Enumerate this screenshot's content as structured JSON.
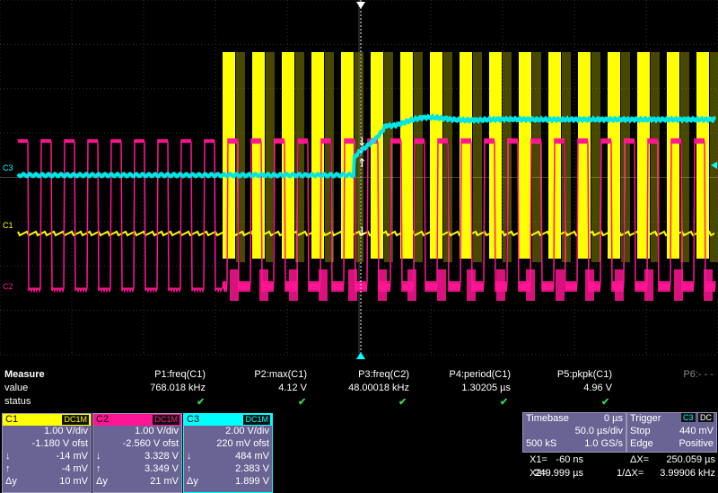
{
  "channels_marker": {
    "c3": "C3",
    "c1": "C1",
    "c2": "C2"
  },
  "measure": {
    "title": "Measure",
    "row_value": "value",
    "row_status": "status",
    "params": [
      {
        "name": "P1:freq(C1)",
        "value": "768.018 kHz",
        "status": "✔"
      },
      {
        "name": "P2:max(C1)",
        "value": "4.12 V",
        "status": "✔"
      },
      {
        "name": "P3:freq(C2)",
        "value": "48.00018 kHz",
        "status": "✔"
      },
      {
        "name": "P4:period(C1)",
        "value": "1.30205 µs",
        "status": "✔"
      },
      {
        "name": "P5:pkpk(C1)",
        "value": "4.96 V",
        "status": "✔"
      },
      {
        "name": "P6:- - -",
        "value": "",
        "status": ""
      }
    ]
  },
  "channel_boxes": [
    {
      "name": "C1",
      "coupling": "DC1M",
      "color": "#ffff00",
      "text_color": "#000000",
      "vdiv": "1.00 V/div",
      "offset": "-1.180 V ofst",
      "down": "-14 mV",
      "up": "-4 mV",
      "delta": "10 mV"
    },
    {
      "name": "C2",
      "coupling": "DC1M",
      "color": "#ff1493",
      "text_color": "#000000",
      "vdiv": "1.00 V/div",
      "offset": "-2.560 V ofst",
      "down": "3.328 V",
      "up": "3.349 V",
      "delta": "21 mV"
    },
    {
      "name": "C3",
      "coupling": "DC1M",
      "color": "#00ffff",
      "text_color": "#000000",
      "vdiv": "2.00 V/div",
      "offset": "220 mV ofst",
      "down": "484 mV",
      "up": "2.383 V",
      "delta": "1.899 V"
    }
  ],
  "cursor_labels": {
    "down": "↓",
    "up": "↑",
    "delta": "Δy"
  },
  "timebase": {
    "label": "Timebase",
    "delay": "0 µs",
    "tdiv": "50.0 µs/div",
    "samples": "500 kS",
    "rate": "1.0 GS/s"
  },
  "trigger": {
    "label": "Trigger",
    "source": "C3",
    "coupling": "DC",
    "mode": "Stop",
    "level": "440 mV",
    "type": "Edge",
    "slope": "Positive"
  },
  "cursors": {
    "x1_label": "X1=",
    "x1": "-60 ns",
    "dx_label": "ΔX=",
    "dx": "250.059 µs",
    "x2_label": "X2=",
    "x2": "249.999 µs",
    "inv_label": "1/ΔX=",
    "inv": "3.99906 kHz"
  },
  "colors": {
    "c1": "#ffff00",
    "c2": "#ff1493",
    "c3": "#00e5e5",
    "grid": "#3a3a3a",
    "check": "#37d24a"
  }
}
